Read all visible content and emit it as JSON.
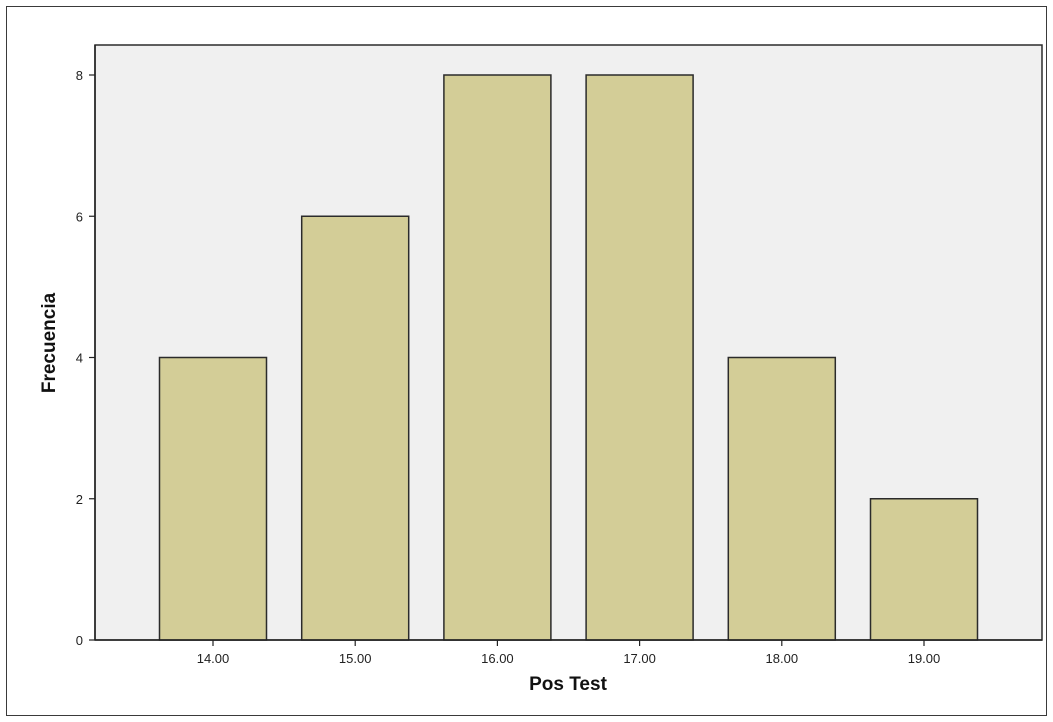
{
  "chart_data": {
    "type": "bar",
    "title": "",
    "xlabel": "Pos Test",
    "ylabel": "Frecuencia",
    "categories": [
      "14.00",
      "15.00",
      "16.00",
      "17.00",
      "18.00",
      "19.00"
    ],
    "values": [
      4,
      6,
      8,
      8,
      4,
      2
    ],
    "ylim": [
      0,
      8
    ],
    "yticks": [
      "0",
      "2",
      "4",
      "6",
      "8"
    ],
    "grid": false,
    "legend": "none",
    "colors": {
      "bar_fill": "#d3cd97",
      "bar_stroke": "#2b2b2b",
      "plot_background": "#f0f0f0",
      "axis": "#222222"
    }
  }
}
